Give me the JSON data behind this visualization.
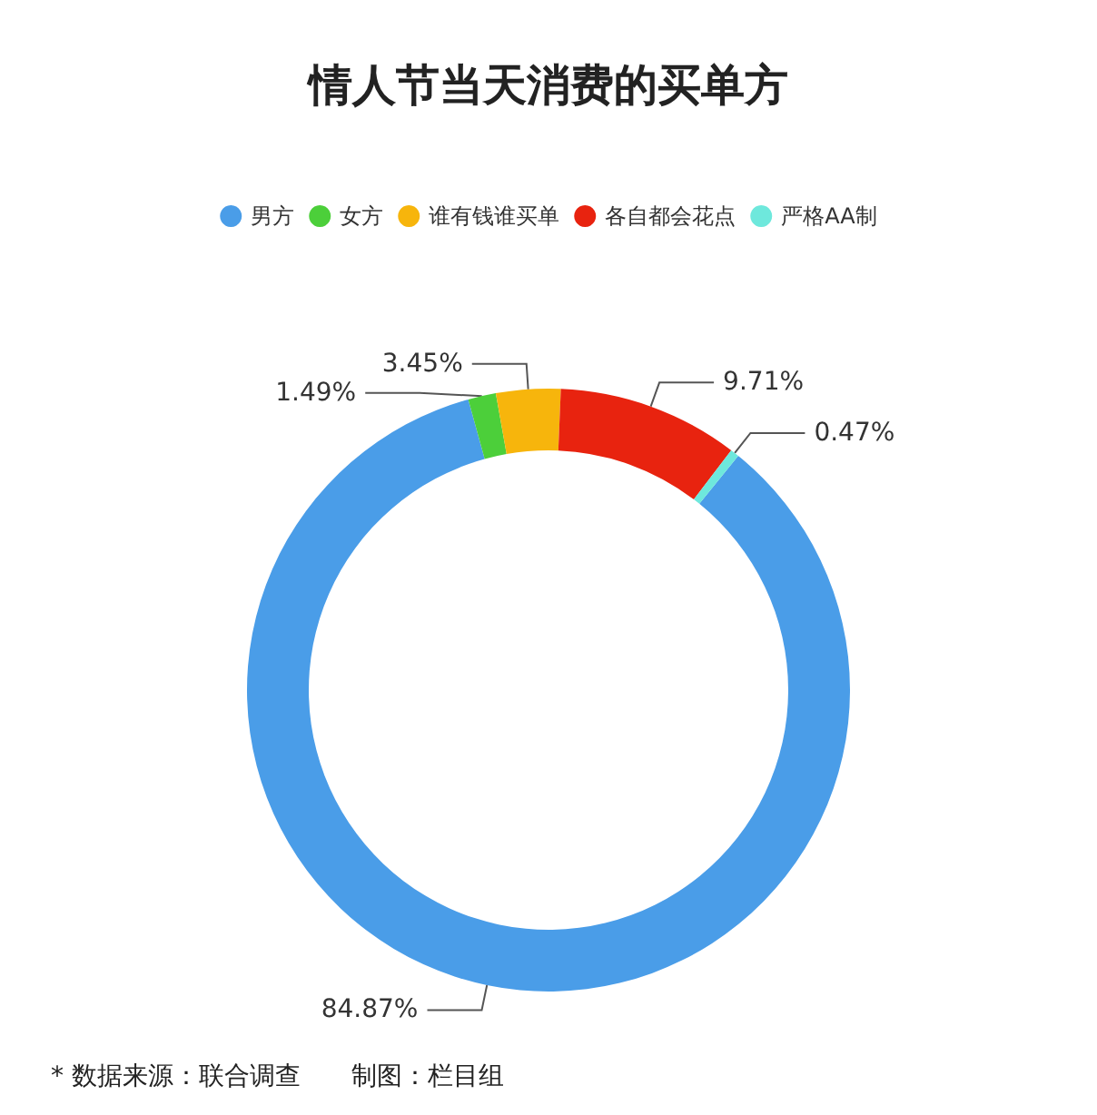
{
  "chart_data": {
    "type": "donut",
    "title": "情人节当天消费的买单方",
    "categories": [
      "男方",
      "女方",
      "谁有钱谁买单",
      "各自都会花点",
      "严格AA制"
    ],
    "values": [
      84.87,
      1.49,
      3.45,
      9.71,
      0.47
    ],
    "value_labels": [
      "84.87%",
      "1.49%",
      "3.45%",
      "9.71%",
      "0.47%"
    ],
    "colors": [
      "#4a9de8",
      "#4ccf3a",
      "#f7b50c",
      "#e8230f",
      "#6ee8dc"
    ],
    "legend": "top",
    "annotations": [
      "* 数据来源：联合调查　　制图：栏目组"
    ]
  }
}
